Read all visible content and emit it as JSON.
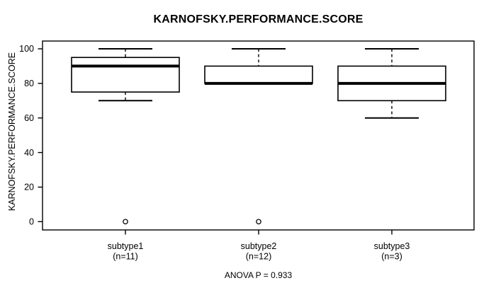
{
  "title": "KARNOFSKY.PERFORMANCE.SCORE",
  "annotation": "ANOVA P = 0.933",
  "chart_data": {
    "type": "boxplot",
    "title": "KARNOFSKY.PERFORMANCE.SCORE",
    "ylabel": "KARNOFSKY.PERFORMANCE.SCORE",
    "xlabel": "",
    "annotation": "ANOVA P = 0.933",
    "ylim": [
      0,
      100
    ],
    "yticks": [
      0,
      20,
      40,
      60,
      80,
      100
    ],
    "grid": false,
    "frame": true,
    "groups": [
      {
        "label": "subtype1",
        "sublabel": "(n=11)",
        "n": 11,
        "min": 70,
        "q1": 75,
        "median": 90,
        "q3": 95,
        "max": 100,
        "outliers": [
          0
        ]
      },
      {
        "label": "subtype2",
        "sublabel": "(n=12)",
        "n": 12,
        "min": 80,
        "q1": 80,
        "median": 80,
        "q3": 90,
        "max": 100,
        "outliers": [
          0
        ]
      },
      {
        "label": "subtype3",
        "sublabel": "(n=3)",
        "n": 3,
        "min": 60,
        "q1": 70,
        "median": 80,
        "q3": 90,
        "max": 100,
        "outliers": []
      }
    ],
    "colors": {
      "line": "#000000",
      "box_fill": "#ffffff",
      "background": "#ffffff"
    }
  }
}
